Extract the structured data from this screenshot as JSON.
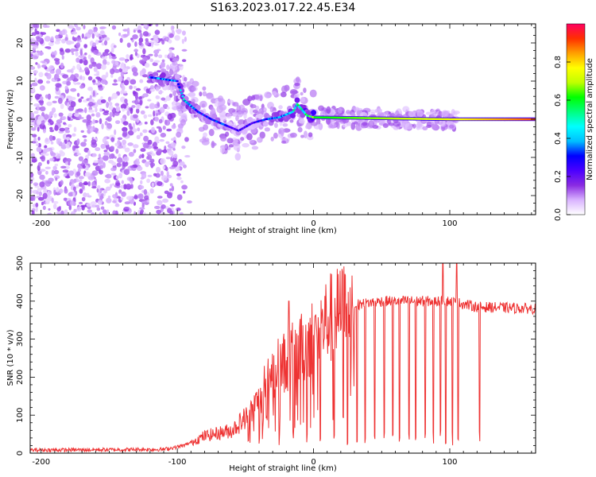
{
  "page_title": "S163.2023.017.22.45.E34",
  "chart_data": [
    {
      "type": "heatmap",
      "title": "S163.2023.017.22.45.E34",
      "xlabel": "Height of straight line (km)",
      "ylabel": "Frequency (Hz)",
      "xlim": [
        -208,
        163
      ],
      "ylim": [
        -25,
        25
      ],
      "xticks": [
        -200,
        -100,
        0,
        100
      ],
      "yticks": [
        -20,
        -10,
        0,
        10,
        20
      ],
      "colorbar": {
        "label": "Normalized spectral amplitude",
        "range": [
          0,
          1
        ],
        "ticks": [
          0.0,
          0.2,
          0.4,
          0.6,
          0.8
        ],
        "colors": [
          "#ffffff",
          "#d9b3ff",
          "#8a2be2",
          "#4b00ff",
          "#0000ff",
          "#00bfff",
          "#00ffff",
          "#00ff80",
          "#00ff00",
          "#c0ff00",
          "#ffff00",
          "#ffa000",
          "#ff3000",
          "#ff0060"
        ]
      },
      "features": {
        "noise_region_x": [
          -208,
          -105
        ],
        "trace": [
          {
            "x": -120,
            "f": 11,
            "amp": 0.35
          },
          {
            "x": -110,
            "f": 10.5,
            "amp": 0.4
          },
          {
            "x": -100,
            "f": 10,
            "amp": 0.35
          },
          {
            "x": -95,
            "f": 5,
            "amp": 0.45
          },
          {
            "x": -85,
            "f": 2,
            "amp": 0.3
          },
          {
            "x": -75,
            "f": 0,
            "amp": 0.3
          },
          {
            "x": -65,
            "f": -1.5,
            "amp": 0.3
          },
          {
            "x": -55,
            "f": -3,
            "amp": 0.25
          },
          {
            "x": -45,
            "f": -1,
            "amp": 0.25
          },
          {
            "x": -35,
            "f": 0,
            "amp": 0.3
          },
          {
            "x": -25,
            "f": 0.5,
            "amp": 0.4
          },
          {
            "x": -15,
            "f": 2,
            "amp": 0.45
          },
          {
            "x": -12,
            "f": 4,
            "amp": 0.5
          },
          {
            "x": -5,
            "f": 1,
            "amp": 0.55
          },
          {
            "x": 0,
            "f": 0.5,
            "amp": 0.6
          },
          {
            "x": 100,
            "f": 0,
            "amp": 0.75
          },
          {
            "x": 163,
            "f": 0,
            "amp": 0.9
          }
        ]
      }
    },
    {
      "type": "line",
      "xlabel": "Height of straight line (km)",
      "ylabel": "SNR (10 * v/v)",
      "xlim": [
        -208,
        163
      ],
      "ylim": [
        0,
        500
      ],
      "xticks": [
        -200,
        -100,
        0,
        100
      ],
      "yticks": [
        0,
        100,
        200,
        300,
        400,
        500
      ],
      "color": "#ee3333",
      "envelope": [
        {
          "x": -208,
          "snr": 8
        },
        {
          "x": -110,
          "snr": 10
        },
        {
          "x": -95,
          "snr": 20
        },
        {
          "x": -80,
          "snr": 45
        },
        {
          "x": -60,
          "snr": 60
        },
        {
          "x": -45,
          "snr": 110
        },
        {
          "x": -35,
          "snr": 180
        },
        {
          "x": -25,
          "snr": 230
        },
        {
          "x": -10,
          "snr": 270
        },
        {
          "x": 0,
          "snr": 310
        },
        {
          "x": 10,
          "snr": 350
        },
        {
          "x": 20,
          "snr": 370
        },
        {
          "x": 30,
          "snr": 390
        },
        {
          "x": 50,
          "snr": 400
        },
        {
          "x": 100,
          "snr": 400
        },
        {
          "x": 120,
          "snr": 385
        },
        {
          "x": 163,
          "snr": 380
        }
      ],
      "notable_dropouts_x": [
        -40,
        -25,
        -15,
        -5,
        5,
        15,
        25,
        32,
        38,
        45,
        52,
        58,
        63,
        70,
        75,
        82,
        88,
        93,
        97,
        102,
        106,
        122
      ],
      "notable_spikes": [
        {
          "x": -18,
          "snr": 400
        },
        {
          "x": 95,
          "snr": 500
        },
        {
          "x": 105,
          "snr": 500
        }
      ]
    }
  ]
}
